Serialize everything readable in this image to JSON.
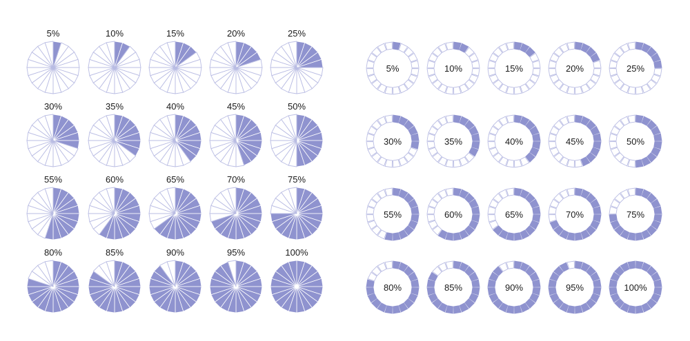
{
  "colors": {
    "fill": "#8f93cf",
    "outline": "#b9bce3",
    "background": "#ffffff",
    "text": "#1a1a1a"
  },
  "pie_charts": {
    "segments": 20,
    "items": [
      {
        "label": "5%",
        "value": 5
      },
      {
        "label": "10%",
        "value": 10
      },
      {
        "label": "15%",
        "value": 15
      },
      {
        "label": "20%",
        "value": 20
      },
      {
        "label": "25%",
        "value": 25
      },
      {
        "label": "30%",
        "value": 30
      },
      {
        "label": "35%",
        "value": 35
      },
      {
        "label": "40%",
        "value": 40
      },
      {
        "label": "45%",
        "value": 45
      },
      {
        "label": "50%",
        "value": 50
      },
      {
        "label": "55%",
        "value": 55
      },
      {
        "label": "60%",
        "value": 60
      },
      {
        "label": "65%",
        "value": 65
      },
      {
        "label": "70%",
        "value": 70
      },
      {
        "label": "75%",
        "value": 75
      },
      {
        "label": "80%",
        "value": 80
      },
      {
        "label": "85%",
        "value": 85
      },
      {
        "label": "90%",
        "value": 90
      },
      {
        "label": "95%",
        "value": 95
      },
      {
        "label": "100%",
        "value": 100
      }
    ]
  },
  "ring_charts": {
    "segments": 20,
    "items": [
      {
        "label": "5%",
        "value": 5
      },
      {
        "label": "10%",
        "value": 10
      },
      {
        "label": "15%",
        "value": 15
      },
      {
        "label": "20%",
        "value": 20
      },
      {
        "label": "25%",
        "value": 25
      },
      {
        "label": "30%",
        "value": 30
      },
      {
        "label": "35%",
        "value": 35
      },
      {
        "label": "40%",
        "value": 40
      },
      {
        "label": "45%",
        "value": 45
      },
      {
        "label": "50%",
        "value": 50
      },
      {
        "label": "55%",
        "value": 55
      },
      {
        "label": "60%",
        "value": 60
      },
      {
        "label": "65%",
        "value": 65
      },
      {
        "label": "70%",
        "value": 70
      },
      {
        "label": "75%",
        "value": 75
      },
      {
        "label": "80%",
        "value": 80
      },
      {
        "label": "85%",
        "value": 85
      },
      {
        "label": "90%",
        "value": 90
      },
      {
        "label": "95%",
        "value": 95
      },
      {
        "label": "100%",
        "value": 100
      }
    ]
  },
  "stock_id": "768549816"
}
